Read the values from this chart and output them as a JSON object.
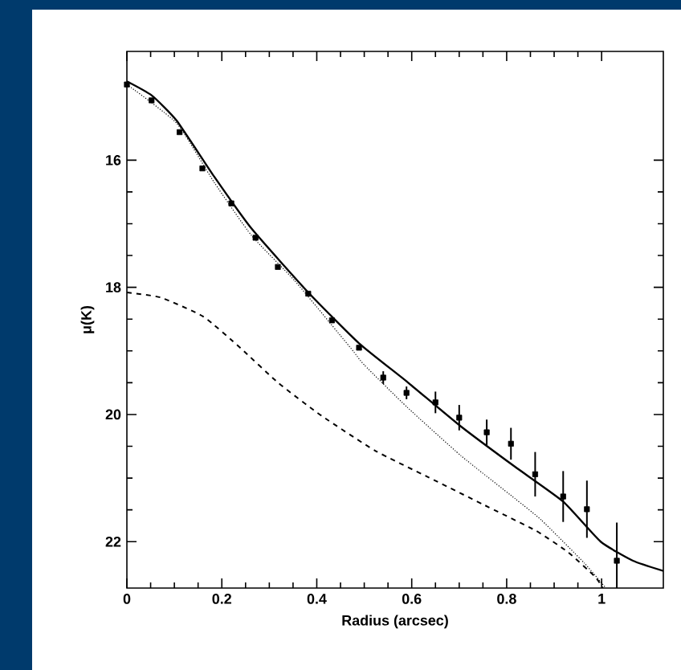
{
  "chart_data": {
    "type": "line",
    "xlabel": "Radius (arcsec)",
    "ylabel": "μ(K)",
    "xlim": [
      0,
      1.13
    ],
    "ylim": [
      22.73,
      14.29
    ],
    "xticks": [
      0,
      0.2,
      0.4,
      0.6,
      0.8,
      1
    ],
    "yticks": [
      16,
      18,
      20,
      22
    ],
    "grid": false,
    "series": [
      {
        "type": "scatter",
        "color": "#000000",
        "marker": "square",
        "x": [
          0,
          0.052,
          0.111,
          0.159,
          0.22,
          0.271,
          0.318,
          0.382,
          0.432,
          0.489,
          0.54,
          0.589,
          0.65,
          0.7,
          0.758,
          0.809,
          0.86,
          0.919,
          0.969,
          1.032
        ],
        "values": [
          14.81,
          15.06,
          15.56,
          16.13,
          16.68,
          17.22,
          17.68,
          18.1,
          18.52,
          18.95,
          19.42,
          19.66,
          19.81,
          20.05,
          20.28,
          20.46,
          20.94,
          21.29,
          21.49,
          22.3
        ],
        "errors": [
          null,
          null,
          null,
          null,
          null,
          null,
          null,
          null,
          null,
          null,
          0.1,
          0.1,
          0.17,
          0.2,
          0.2,
          0.25,
          0.35,
          0.4,
          0.45,
          0.6
        ]
      },
      {
        "color": "#000000",
        "line_style": "solid",
        "x": [
          0,
          0.052,
          0.105,
          0.184,
          0.263,
          0.382,
          0.489,
          0.591,
          0.704,
          0.817,
          0.919,
          0.998,
          1.066,
          1.13
        ],
        "values": [
          14.76,
          14.98,
          15.38,
          16.26,
          17.08,
          18.08,
          18.88,
          19.49,
          20.19,
          20.82,
          21.37,
          22.0,
          22.3,
          22.46
        ]
      },
      {
        "color": "#000000",
        "line_style": "dotted",
        "x": [
          0,
          0.105,
          0.184,
          0.263,
          0.354,
          0.472,
          0.5,
          0.591,
          0.704,
          0.817,
          0.873,
          0.964,
          1.009
        ],
        "values": [
          14.81,
          15.42,
          16.35,
          17.19,
          17.9,
          18.96,
          19.22,
          19.89,
          20.65,
          21.32,
          21.66,
          22.34,
          22.73
        ]
      },
      {
        "color": "#000000",
        "line_style": "dashed",
        "x": [
          0,
          0.071,
          0.161,
          0.24,
          0.32,
          0.41,
          0.523,
          0.636,
          0.749,
          0.862,
          0.93,
          0.986,
          1.003
        ],
        "values": [
          18.08,
          18.16,
          18.46,
          18.96,
          19.51,
          20.02,
          20.57,
          20.99,
          21.41,
          21.83,
          22.17,
          22.55,
          22.73
        ]
      }
    ]
  }
}
